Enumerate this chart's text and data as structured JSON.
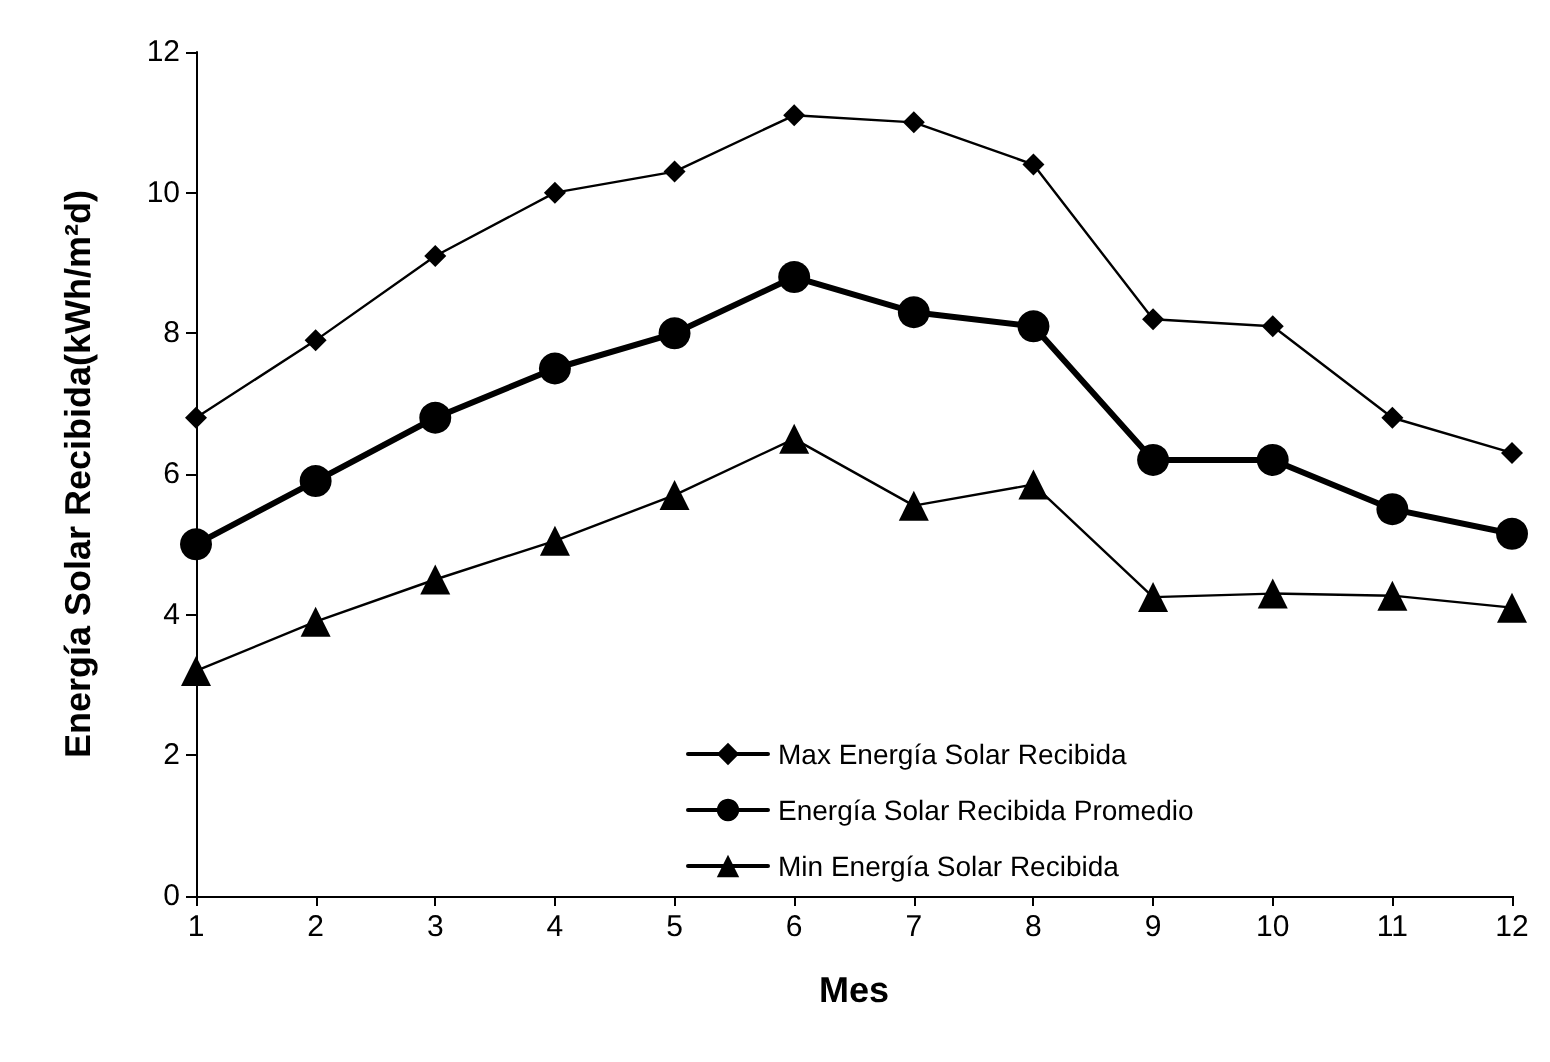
{
  "chart_data": {
    "type": "line",
    "xlabel": "Mes",
    "ylabel": "Energía Solar Recibida(kWh/m²d)",
    "x": [
      1,
      2,
      3,
      4,
      5,
      6,
      7,
      8,
      9,
      10,
      11,
      12
    ],
    "xlim": [
      1,
      12
    ],
    "xticks": [
      1,
      2,
      3,
      4,
      5,
      6,
      7,
      8,
      9,
      10,
      11,
      12
    ],
    "ylim": [
      0,
      12
    ],
    "yticks": [
      0,
      2,
      4,
      6,
      8,
      10,
      12
    ],
    "grid": false,
    "legend": "bottom",
    "line_style": "solid",
    "series": [
      {
        "name": "Max Energía Solar Recibida",
        "color": "#000000",
        "marker": "diamond",
        "values": [
          6.8,
          7.9,
          9.1,
          10.0,
          10.3,
          11.1,
          11.0,
          10.4,
          8.2,
          8.1,
          6.8,
          6.3
        ]
      },
      {
        "name": "Energía Solar Recibida Promedio",
        "color": "#000000",
        "marker": "circle",
        "values": [
          5.0,
          5.9,
          6.8,
          7.5,
          8.0,
          8.8,
          8.3,
          8.1,
          6.2,
          6.2,
          5.5,
          5.15
        ]
      },
      {
        "name": "Min Energía Solar Recibida",
        "color": "#000000",
        "marker": "triangle",
        "values": [
          3.2,
          3.9,
          4.5,
          5.05,
          5.7,
          6.5,
          5.55,
          5.85,
          4.25,
          4.3,
          4.27,
          4.1
        ]
      }
    ]
  }
}
